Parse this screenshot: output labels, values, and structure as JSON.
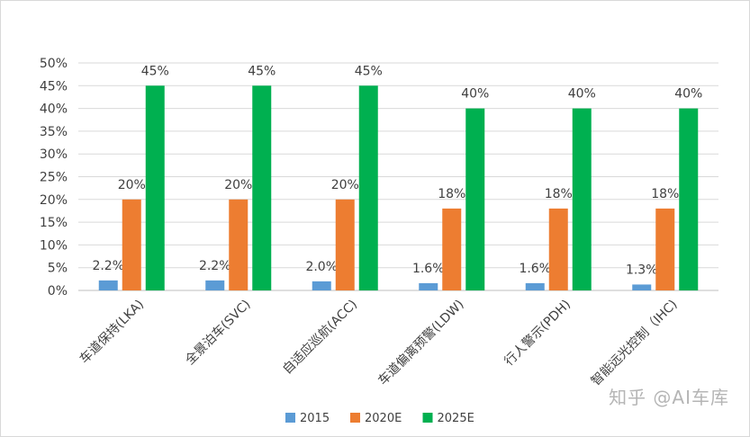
{
  "chart_data": {
    "type": "bar",
    "categories": [
      "车道保持(LKA)",
      "全景泊车(SVC)",
      "自适应巡航(ACC)",
      "车道偏离预警(LDW)",
      "行人警示(PDH)",
      "智能远光控制（IHC)"
    ],
    "series": [
      {
        "name": "2015",
        "values": [
          2.2,
          2.2,
          2.0,
          1.6,
          1.6,
          1.3
        ],
        "labels": [
          "2.2%",
          "2.2%",
          "2.0%",
          "1.6%",
          "1.6%",
          "1.3%"
        ],
        "color": "#5b9bd5"
      },
      {
        "name": "2020E",
        "values": [
          20,
          20,
          20,
          18,
          18,
          18
        ],
        "labels": [
          "20%",
          "20%",
          "20%",
          "18%",
          "18%",
          "18%"
        ],
        "color": "#ed7d31"
      },
      {
        "name": "2025E",
        "values": [
          45,
          45,
          45,
          40,
          40,
          40
        ],
        "labels": [
          "45%",
          "45%",
          "45%",
          "40%",
          "40%",
          "40%"
        ],
        "color": "#00b050"
      }
    ],
    "yticks": [
      "0%",
      "5%",
      "10%",
      "15%",
      "20%",
      "25%",
      "30%",
      "35%",
      "40%",
      "45%",
      "50%"
    ],
    "ylim": [
      0,
      50
    ],
    "grid": true,
    "legend_position": "bottom",
    "title": "",
    "xlabel": "",
    "ylabel": ""
  },
  "watermark": "知乎 @AI车库"
}
